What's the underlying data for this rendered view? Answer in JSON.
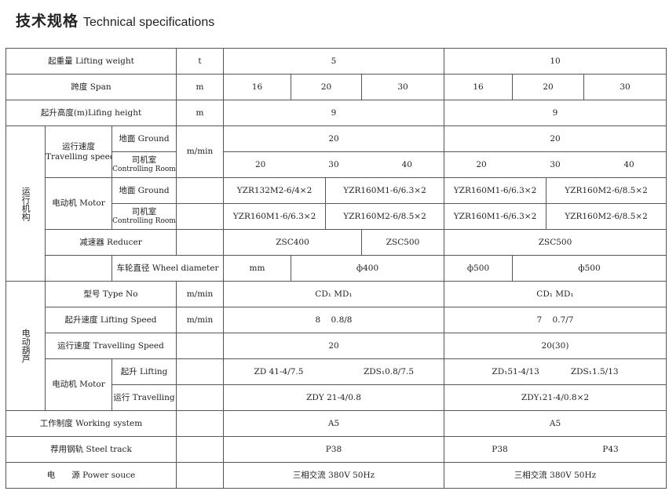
{
  "title": {
    "zh": "技术规格",
    "en": "Technical specifications"
  },
  "rows": {
    "lifting_weight": {
      "label": "起重量 Lifting weight",
      "unit": "t",
      "v5": "5",
      "v10": "10"
    },
    "span": {
      "label": "跨度 Span",
      "unit": "m",
      "v5": [
        "16",
        "20",
        "30"
      ],
      "v10": [
        "16",
        "20",
        "30"
      ]
    },
    "lifting_height": {
      "label": "起升高度(m)Lifing height",
      "unit": "m",
      "v5": "9",
      "v10": "9"
    },
    "travel_group": "运行机构",
    "travel_speed": {
      "label_zh": "运行速度",
      "label_en": "Travelling speed",
      "unit": "m/min",
      "ground": {
        "zh": "地面",
        "en": "Ground",
        "v5": "20",
        "v10": "20"
      },
      "room": {
        "zh": "司机室",
        "en": "Controlling Room",
        "v5": [
          "20",
          "30",
          "40"
        ],
        "v10": [
          "20",
          "30",
          "40"
        ]
      }
    },
    "motor": {
      "label": "电动机 Motor",
      "ground": {
        "zh": "地面",
        "en": "Ground",
        "v5": [
          "YZR132M2-6/4×2",
          "YZR160M1-6/6.3×2"
        ],
        "v10": [
          "YZR160M1-6/6.3×2",
          "YZR160M2-6/8.5×2"
        ]
      },
      "room": {
        "zh": "司机室",
        "en": "Controlling Room",
        "v5": [
          "YZR160M1-6/6.3×2",
          "YZR160M2-6/8.5×2"
        ],
        "v10": [
          "YZR160M1-6/6.3×2",
          "YZR160M2-6/8.5×2"
        ]
      }
    },
    "reducer": {
      "label": "减速器 Reducer",
      "v5": [
        "ZSC400",
        "ZSC500"
      ],
      "v10": "ZSC500"
    },
    "wheel": {
      "label": "车轮直径 Wheel diameter",
      "unit": "mm",
      "v5": [
        "ф400",
        "ф500"
      ],
      "v10": "ф500"
    },
    "hoist_group": "电动葫芦",
    "type_no": {
      "label": "型号 Type No",
      "unit": "m/min",
      "v5": "CD₁  MD₁",
      "v10": "CD₁  MD₁"
    },
    "lifting_speed": {
      "label": "起升速度 Lifting Speed",
      "unit": "m/min",
      "v5": "8    0.8/8",
      "v10": "7    0.7/7"
    },
    "hoist_travel_speed": {
      "label": "运行速度 Travelling Speed",
      "v5": "20",
      "v10": "20(30)"
    },
    "hoist_motor": {
      "label": "电动机 Motor",
      "lifting": {
        "label": "起升 Lifting",
        "v5": [
          "ZD 41-4/7.5",
          "ZDS₁0.8/7.5"
        ],
        "v10": [
          "ZD₁51-4/13",
          "ZDS₁1.5/13"
        ]
      },
      "travelling": {
        "label": "运行 Travelling",
        "v5": "ZDY 21-4/0.8",
        "v10": "ZDY₁21-4/0.8×2"
      }
    },
    "working_system": {
      "label": "工作制度 Working system",
      "v5": "A5",
      "v10": "A5"
    },
    "steel_track": {
      "label": "荐用钢轨 Steel track",
      "v5": "P38",
      "v10": [
        "P38",
        "P43"
      ]
    },
    "power": {
      "label": "电　　源 Power souce",
      "v5": "三相交流 380V 50Hz",
      "v10": "三相交流 380V 50Hz"
    }
  }
}
